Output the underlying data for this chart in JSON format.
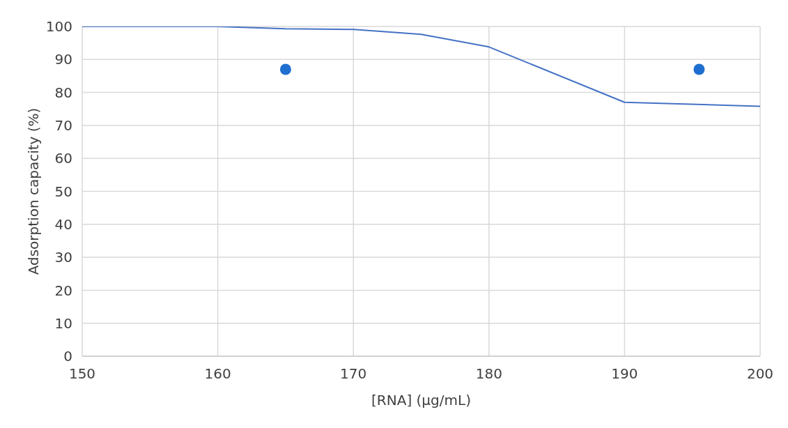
{
  "chart_data": {
    "type": "line",
    "xlabel": "[RNA] (µg/mL)",
    "ylabel": "Adsorption capacity (%)",
    "xlim": [
      150,
      200
    ],
    "xticks": [
      150,
      160,
      170,
      180,
      190,
      200
    ],
    "ylim": [
      0,
      100
    ],
    "yticks": [
      0,
      10,
      20,
      30,
      40,
      50,
      60,
      70,
      80,
      90,
      100
    ],
    "grid": true,
    "legend": false,
    "series": [
      {
        "color": "#4472c4",
        "marker": "none",
        "line_style": "solid",
        "x": [
          150,
          160,
          165,
          170,
          175,
          180,
          190,
          200
        ],
        "values": [
          100,
          100,
          99.3,
          99.1,
          97.6,
          93.8,
          77,
          75.8
        ]
      },
      {
        "type": "scatter",
        "color": "#1f6fd0",
        "marker": "circle",
        "x": [
          165,
          195.5
        ],
        "values": [
          87,
          87
        ]
      }
    ]
  }
}
